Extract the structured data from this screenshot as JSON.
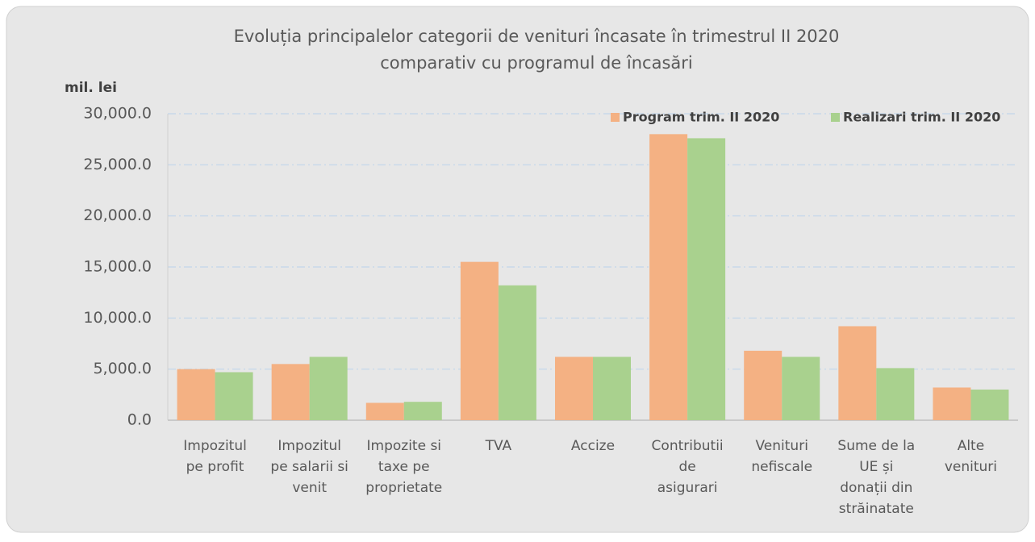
{
  "chart_data": {
    "type": "bar",
    "title": [
      "Evoluția principalelor categorii de venituri încasate în trimestrul II 2020",
      "comparativ cu programul de încasări"
    ],
    "ylabel": "mil. lei",
    "categories": [
      [
        "Impozitul",
        "pe profit"
      ],
      [
        "Impozitul",
        "pe salarii si",
        "venit"
      ],
      [
        "Impozite si",
        "taxe pe",
        "proprietate"
      ],
      [
        "TVA"
      ],
      [
        "Accize"
      ],
      [
        "Contributii",
        "de",
        "asigurari"
      ],
      [
        "Venituri",
        "nefiscale"
      ],
      [
        "Sume de la",
        "UE și",
        "donații din",
        "străinatate"
      ],
      [
        "Alte",
        "venituri"
      ]
    ],
    "series": [
      {
        "name": "Program trim. II 2020",
        "color": "#f4b183",
        "values": [
          5000,
          5500,
          1700,
          15500,
          6200,
          28000,
          6800,
          9200,
          3200
        ]
      },
      {
        "name": "Realizari trim. II 2020",
        "color": "#a9d18e",
        "values": [
          4700,
          6200,
          1800,
          13200,
          6200,
          27600,
          6200,
          5100,
          3000
        ]
      }
    ],
    "ylim": [
      0,
      30000
    ],
    "yticks": [
      {
        "value": 0,
        "label": "0.0"
      },
      {
        "value": 5000,
        "label": "5,000.0"
      },
      {
        "value": 10000,
        "label": "10,000.0"
      },
      {
        "value": 15000,
        "label": "15,000.0"
      },
      {
        "value": 20000,
        "label": "20,000.0"
      },
      {
        "value": 25000,
        "label": "25,000.0"
      },
      {
        "value": 30000,
        "label": "30,000.0"
      }
    ],
    "grid": true,
    "legend": "top-right"
  }
}
